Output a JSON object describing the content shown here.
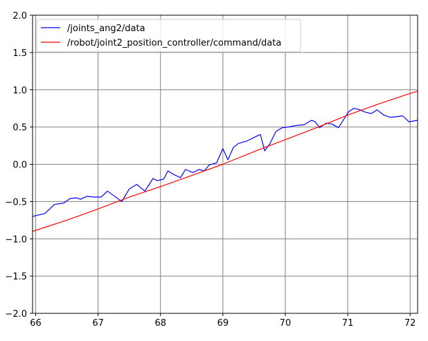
{
  "chart_data": {
    "type": "line",
    "title": "",
    "xlabel": "",
    "ylabel": "",
    "xlim": [
      65.95,
      72.12
    ],
    "ylim": [
      -2.0,
      2.0
    ],
    "grid": true,
    "legend_position": "top-left",
    "x_ticks": [
      66,
      67,
      68,
      69,
      70,
      71,
      72
    ],
    "x_tick_labels": [
      "66",
      "67",
      "68",
      "69",
      "70",
      "71",
      "72"
    ],
    "y_ticks": [
      2.0,
      1.5,
      1.0,
      0.5,
      0.0,
      -0.5,
      -1.0,
      -1.5,
      -2.0
    ],
    "y_tick_labels": [
      "2.0",
      "1.5",
      "1.0",
      "0.5",
      "0.0",
      "−0.5",
      "−1.0",
      "−1.5",
      "−2.0"
    ],
    "series": [
      {
        "name": "/joints_ang2/data",
        "color": "#0000ff",
        "x": [
          65.95,
          66.0,
          66.15,
          66.3,
          66.45,
          66.55,
          66.65,
          66.72,
          66.82,
          66.93,
          67.05,
          67.15,
          67.25,
          67.38,
          67.5,
          67.62,
          67.75,
          67.88,
          67.95,
          68.05,
          68.12,
          68.22,
          68.32,
          68.4,
          68.52,
          68.62,
          68.7,
          68.78,
          68.9,
          69.0,
          69.08,
          69.17,
          69.25,
          69.38,
          69.5,
          69.6,
          69.67,
          69.75,
          69.85,
          69.95,
          70.05,
          70.17,
          70.3,
          70.42,
          70.48,
          70.55,
          70.65,
          70.75,
          70.85,
          70.95,
          71.02,
          71.1,
          71.2,
          71.28,
          71.38,
          71.47,
          71.58,
          71.68,
          71.8,
          71.88,
          71.98,
          72.12
        ],
        "y": [
          -0.7,
          -0.69,
          -0.66,
          -0.54,
          -0.52,
          -0.46,
          -0.45,
          -0.47,
          -0.43,
          -0.44,
          -0.44,
          -0.36,
          -0.42,
          -0.5,
          -0.33,
          -0.27,
          -0.36,
          -0.19,
          -0.22,
          -0.2,
          -0.09,
          -0.14,
          -0.18,
          -0.07,
          -0.11,
          -0.07,
          -0.09,
          -0.01,
          0.02,
          0.21,
          0.06,
          0.23,
          0.28,
          0.31,
          0.36,
          0.4,
          0.18,
          0.27,
          0.44,
          0.49,
          0.5,
          0.52,
          0.53,
          0.59,
          0.57,
          0.49,
          0.55,
          0.54,
          0.49,
          0.62,
          0.71,
          0.75,
          0.73,
          0.7,
          0.68,
          0.73,
          0.66,
          0.63,
          0.64,
          0.65,
          0.57,
          0.59
        ]
      },
      {
        "name": "/robot/joint2_position_controller/command/data",
        "color": "#ff0000",
        "x": [
          65.95,
          66.5,
          67.0,
          67.5,
          68.0,
          68.5,
          69.0,
          69.5,
          70.0,
          70.5,
          71.0,
          71.5,
          72.0,
          72.12
        ],
        "y": [
          -0.9,
          -0.75,
          -0.6,
          -0.44,
          -0.3,
          -0.15,
          0.0,
          0.17,
          0.33,
          0.49,
          0.66,
          0.81,
          0.95,
          0.98
        ]
      }
    ]
  }
}
